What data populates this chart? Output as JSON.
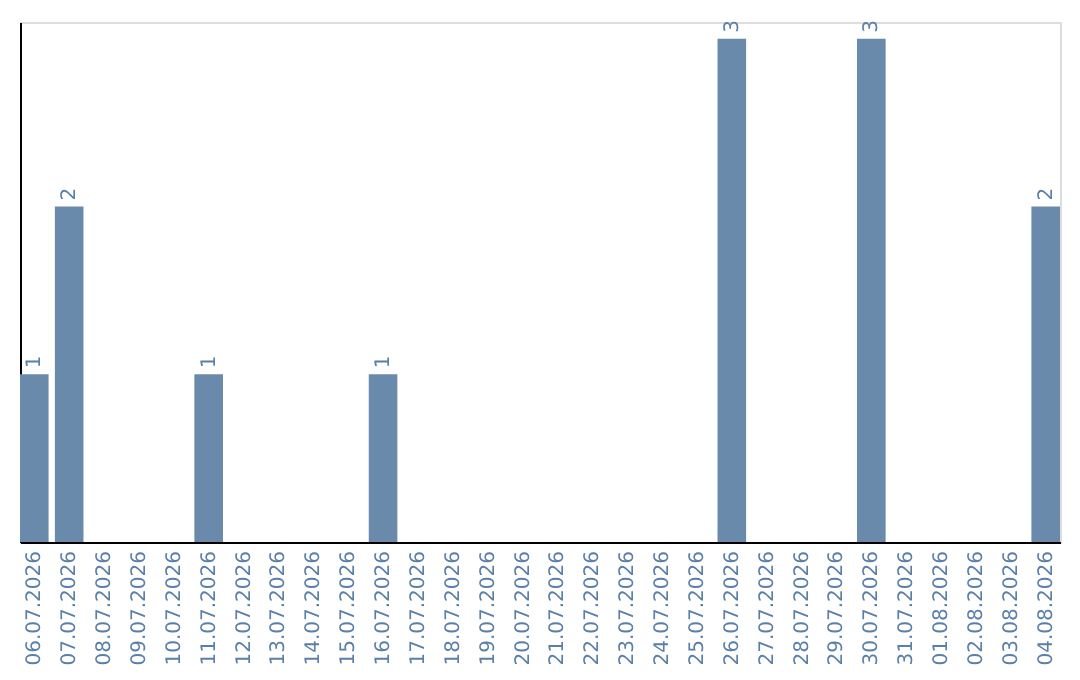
{
  "chart_data": {
    "type": "bar",
    "categories": [
      "06.07.2026",
      "07.07.2026",
      "08.07.2026",
      "09.07.2026",
      "10.07.2026",
      "11.07.2026",
      "12.07.2026",
      "13.07.2026",
      "14.07.2026",
      "15.07.2026",
      "16.07.2026",
      "17.07.2026",
      "18.07.2026",
      "19.07.2026",
      "20.07.2026",
      "21.07.2026",
      "22.07.2026",
      "23.07.2026",
      "24.07.2026",
      "25.07.2026",
      "26.07.2026",
      "27.07.2026",
      "28.07.2026",
      "29.07.2026",
      "30.07.2026",
      "31.07.2026",
      "01.08.2026",
      "02.08.2026",
      "03.08.2026",
      "04.08.2026"
    ],
    "values": [
      1,
      2,
      0,
      0,
      0,
      1,
      0,
      0,
      0,
      0,
      1,
      0,
      0,
      0,
      0,
      0,
      0,
      0,
      0,
      0,
      3,
      0,
      0,
      0,
      3,
      0,
      0,
      0,
      0,
      2
    ],
    "value_labels": [
      "1",
      "2",
      null,
      null,
      null,
      "1",
      null,
      null,
      null,
      null,
      "1",
      null,
      null,
      null,
      null,
      null,
      null,
      null,
      null,
      null,
      "3",
      null,
      null,
      null,
      "3",
      null,
      null,
      null,
      null,
      "2"
    ],
    "color": "#6a8aab",
    "ylim": [
      0,
      3.1
    ],
    "tick_labels": "x",
    "grid": false
  }
}
